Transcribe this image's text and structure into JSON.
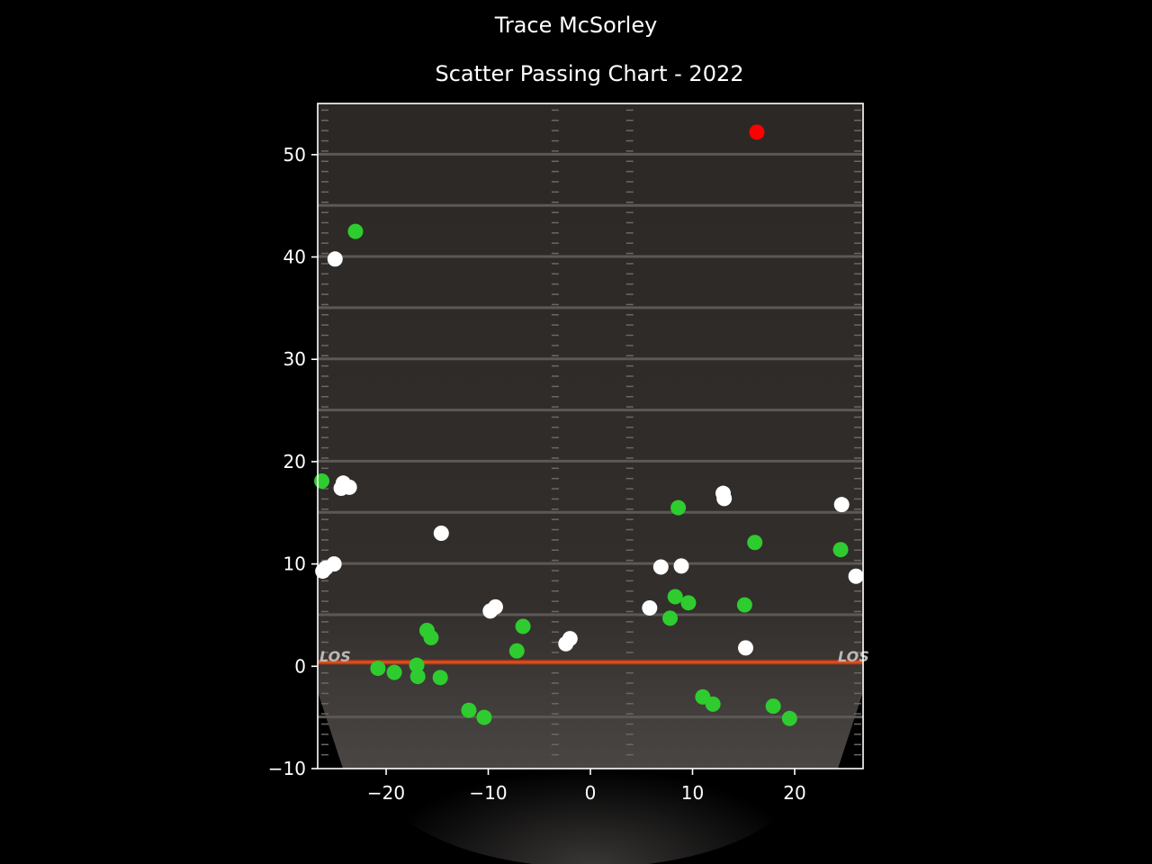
{
  "figure": {
    "suptitle": "Trace McSorley",
    "title": "Scatter Passing Chart - 2022"
  },
  "colors": {
    "background": "#000000",
    "field": "#2e2b29",
    "complete": "#2ecc2e",
    "incomplete": "#ffffff",
    "touchdown": "#ff0000",
    "los": "#d0401a",
    "axes": "#ffffff"
  },
  "chart_data": {
    "type": "scatter",
    "title": "Scatter Passing Chart - 2022",
    "xlim": [
      -26.7,
      26.7
    ],
    "ylim": [
      -10,
      55
    ],
    "x_ticks": [
      -20,
      -10,
      0,
      10,
      20
    ],
    "y_ticks": [
      -10,
      0,
      10,
      20,
      30,
      40,
      50
    ],
    "x_tick_labels": [
      "−20",
      "−10",
      "0",
      "10",
      "20"
    ],
    "y_tick_labels": [
      "−10",
      "0",
      "10",
      "20",
      "30",
      "40",
      "50"
    ],
    "field_labels": [
      "LOS",
      "LOS"
    ],
    "grid": false,
    "series": [
      {
        "color": "#2ecc2e",
        "points": [
          [
            -23.0,
            42.5
          ],
          [
            -26.3,
            18.1
          ],
          [
            -16.0,
            3.5
          ],
          [
            -15.6,
            2.8
          ],
          [
            -6.6,
            3.9
          ],
          [
            -7.2,
            1.5
          ],
          [
            -20.8,
            -0.2
          ],
          [
            -19.2,
            -0.6
          ],
          [
            -17.0,
            0.1
          ],
          [
            -16.9,
            -1.0
          ],
          [
            -14.7,
            -1.1
          ],
          [
            -11.9,
            -4.3
          ],
          [
            -10.4,
            -5.0
          ],
          [
            8.6,
            15.5
          ],
          [
            16.1,
            12.1
          ],
          [
            24.5,
            11.4
          ],
          [
            8.3,
            6.8
          ],
          [
            9.6,
            6.2
          ],
          [
            7.8,
            4.7
          ],
          [
            15.1,
            6.0
          ],
          [
            11.0,
            -3.0
          ],
          [
            12.0,
            -3.7
          ],
          [
            17.9,
            -3.9
          ],
          [
            19.5,
            -5.1
          ]
        ]
      },
      {
        "color": "#ffffff",
        "points": [
          [
            -25.0,
            39.8
          ],
          [
            -24.2,
            17.9
          ],
          [
            -24.4,
            17.4
          ],
          [
            -23.6,
            17.5
          ],
          [
            -14.6,
            13.0
          ],
          [
            -25.1,
            10.0
          ],
          [
            -25.9,
            9.6
          ],
          [
            -26.2,
            9.3
          ],
          [
            -9.8,
            5.4
          ],
          [
            -9.3,
            5.8
          ],
          [
            -2.4,
            2.2
          ],
          [
            -2.0,
            2.7
          ],
          [
            6.9,
            9.7
          ],
          [
            8.9,
            9.8
          ],
          [
            5.8,
            5.7
          ],
          [
            13.0,
            16.9
          ],
          [
            13.1,
            16.4
          ],
          [
            24.6,
            15.8
          ],
          [
            26.0,
            8.8
          ],
          [
            15.2,
            1.8
          ]
        ]
      },
      {
        "color": "#ff0000",
        "points": [
          [
            16.3,
            52.2
          ]
        ]
      }
    ]
  }
}
